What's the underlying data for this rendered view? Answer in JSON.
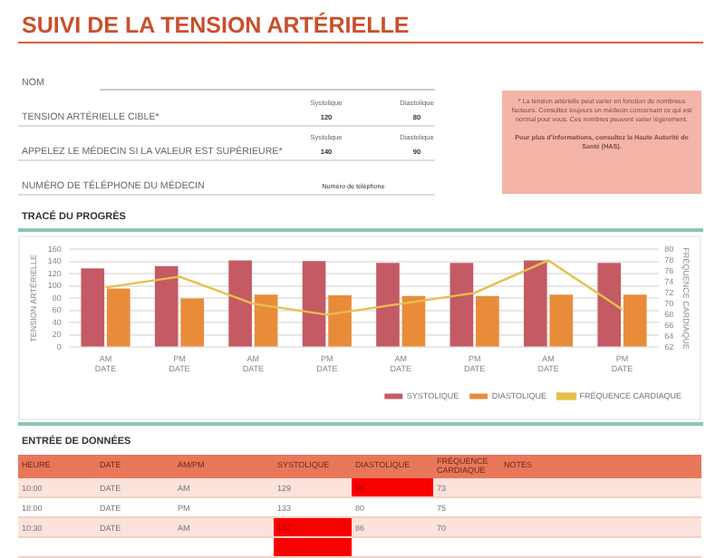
{
  "chart_data": {
    "type": "bar",
    "title": "SUIVI DE LA TENSION ARTÉRIELLE",
    "ylabel": "TENSION ARTÉRIELLE",
    "y2label": "FRÉQUENCE CARDIAQUE",
    "categories": [
      "AM\nDATE",
      "PM\nDATE",
      "AM\nDATE",
      "PM\nDATE",
      "AM\nDATE",
      "PM\nDATE",
      "AM\nDATE",
      "PM\nDATE"
    ],
    "series": [
      {
        "name": "SYSTOLIQUE",
        "color": "#c45a64",
        "values": [
          129,
          133,
          142,
          141,
          138,
          138,
          142,
          138
        ]
      },
      {
        "name": "DIASTOLIQUE",
        "color": "#e88c3a",
        "values": [
          96,
          80,
          86,
          85,
          84,
          84,
          86,
          86
        ]
      },
      {
        "name": "FRÉQUENCE CARDIAQUE",
        "type": "line",
        "axis": "y2",
        "color": "#e6c04c",
        "values": [
          73,
          75,
          70,
          68,
          70,
          72,
          78,
          69
        ]
      }
    ],
    "ylim": [
      0,
      160
    ],
    "yticks": [
      0,
      20,
      40,
      60,
      80,
      100,
      120,
      140,
      160
    ],
    "y2lim": [
      62,
      80
    ],
    "y2ticks": [
      62,
      64,
      66,
      68,
      70,
      72,
      74,
      76,
      78,
      80
    ],
    "grid": "y",
    "legend": "bottom",
    "marker": "none",
    "annotations": [
      "NOM",
      "TENSION ARTÉRIELLE CIBLE*",
      "Systolique",
      "Diastolique",
      "120",
      "80",
      "APPELEZ LE MÉDECIN SI LA VALEUR EST SUPÉRIEURE*",
      "Systolique",
      "Diastolique",
      "140",
      "90",
      "NUMÉRO DE TÉLÉPHONE DU MÉDECIN",
      "Numéro de téléphone",
      "* La tension artérielle peut varier en fonction de nombreux facteurs.  Consultez toujours un médecin concernant ce qui est normal pour vous. Ces nombres peuvent varier légèrement.",
      "Pour plus d'informations, consultez la Haute Autorité de Santé (HAS).",
      "TRACÉ DU PROGRÈS",
      "ENTRÉE DE DONNÉES",
      "HEURE",
      "DATE",
      "AM/PM",
      "SYSTOLIQUE",
      "DIASTOLIQUE",
      "FRÉQUENCE CARDIAQUE",
      "NOTES",
      "10:00",
      "DATE",
      "AM",
      "129",
      "96",
      "73",
      "18:00",
      "DATE",
      "PM",
      "133",
      "80",
      "75",
      "10:30",
      "DATE",
      "AM",
      "142",
      "86",
      "70"
    ]
  }
}
